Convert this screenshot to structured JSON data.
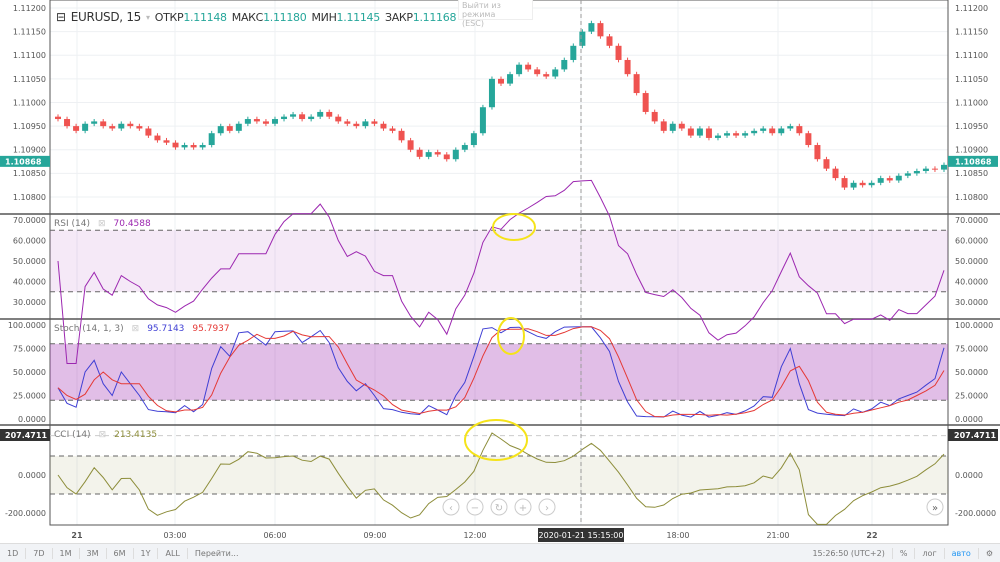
{
  "legend": {
    "symbol": "EURUSD, 15",
    "open_label": "ОТКР",
    "open": "1.11148",
    "high_label": "МАКС",
    "high": "1.11180",
    "low_label": "МИН",
    "low": "1.11145",
    "close_label": "ЗАКР",
    "close": "1.11168"
  },
  "esc_tooltip": {
    "line1": "Выйти из режима",
    "line2": "(ESC)"
  },
  "colors": {
    "up": "#26a69a",
    "down": "#ef5350",
    "rsi": "#9c27b0",
    "stoch_k": "#3f3fd4",
    "stoch_d": "#e53935",
    "cci": "#8d8d3a",
    "annotation": "#f5e31a"
  },
  "indicators": {
    "rsi": {
      "label": "RSI (14)",
      "value": "70.4588",
      "ticks": [
        "70.0000",
        "60.0000",
        "50.0000",
        "40.0000",
        "30.0000"
      ]
    },
    "stoch": {
      "label": "Stoch (14, 1, 3)",
      "k_value": "95.7143",
      "d_value": "95.7937",
      "ticks": [
        "100.0000",
        "75.0000",
        "50.0000",
        "25.0000",
        "0.0000"
      ]
    },
    "cci": {
      "label": "CCI (14)",
      "value": "213.4135",
      "scale_value": "207.4711",
      "ticks": [
        "0.0000",
        "-200.0000"
      ]
    }
  },
  "price_axis": {
    "ticks": [
      "1.11200",
      "1.11150",
      "1.11100",
      "1.11050",
      "1.11000",
      "1.10950",
      "1.10900",
      "1.10850",
      "1.10800"
    ],
    "last_price": "1.10868"
  },
  "time_axis": {
    "labels": [
      "21",
      "03:00",
      "06:00",
      "09:00",
      "12:00",
      "18:00",
      "21:00",
      "22"
    ],
    "crosshair_label": "2020-01-21 15:15:00"
  },
  "bottom_bar": {
    "ranges": [
      "1D",
      "7D",
      "1M",
      "3M",
      "6M",
      "1Y",
      "ALL"
    ],
    "goto": "Перейти...",
    "clock": "15:26:50 (UTC+2)",
    "percent": "%",
    "log": "лог",
    "auto": "авто"
  },
  "chart_data": {
    "type": "candlestick",
    "interval": "15",
    "symbol": "EURUSD",
    "ylim": [
      1.1078,
      1.112
    ],
    "first_open": 1.1097,
    "close": [
      1.10965,
      1.1095,
      1.1094,
      1.10955,
      1.1096,
      1.1095,
      1.10945,
      1.10955,
      1.1095,
      1.10945,
      1.1093,
      1.1092,
      1.10915,
      1.10905,
      1.1091,
      1.10905,
      1.1091,
      1.10935,
      1.1095,
      1.1094,
      1.10955,
      1.10965,
      1.1096,
      1.10955,
      1.10965,
      1.1097,
      1.10975,
      1.10965,
      1.1097,
      1.1098,
      1.1097,
      1.1096,
      1.10955,
      1.1095,
      1.1096,
      1.10955,
      1.10945,
      1.1094,
      1.1092,
      1.109,
      1.10885,
      1.10895,
      1.1089,
      1.1088,
      1.109,
      1.1091,
      1.10935,
      1.1099,
      1.1105,
      1.1104,
      1.1106,
      1.1108,
      1.1107,
      1.1106,
      1.11055,
      1.1107,
      1.1109,
      1.1112,
      1.1115,
      1.11168,
      1.1114,
      1.1112,
      1.1109,
      1.1106,
      1.1102,
      1.1098,
      1.1096,
      1.1094,
      1.10955,
      1.10945,
      1.1093,
      1.10945,
      1.10925,
      1.1093,
      1.10935,
      1.1093,
      1.10935,
      1.1094,
      1.10945,
      1.10935,
      1.10945,
      1.1095,
      1.10935,
      1.1091,
      1.1088,
      1.1086,
      1.1084,
      1.1082,
      1.1083,
      1.10825,
      1.1083,
      1.1084,
      1.10835,
      1.10845,
      1.1085,
      1.10855,
      1.1086,
      1.10858,
      1.10868
    ],
    "rsi_levels": [
      65,
      35
    ],
    "stoch_levels": [
      80,
      20
    ],
    "cci_levels": [
      100,
      -100
    ]
  }
}
